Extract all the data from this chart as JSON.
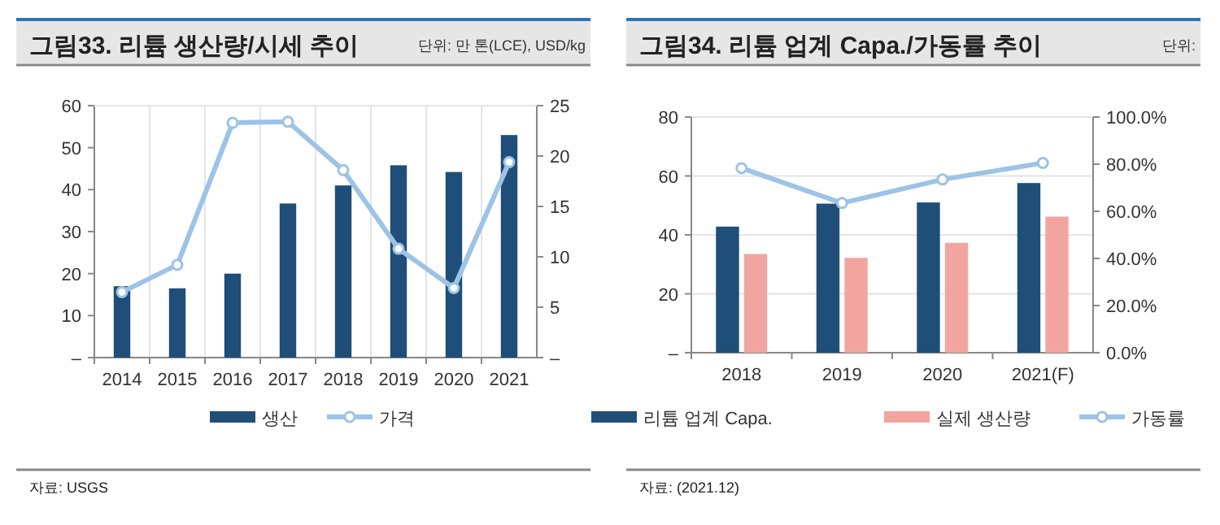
{
  "chart_data": [
    {
      "type": "bar",
      "title": "그림33. 리튬 생산량/시세 추이",
      "subtitle": "단위: 만 톤(LCE), USD/kg",
      "categories": [
        "2014",
        "2015",
        "2016",
        "2017",
        "2018",
        "2019",
        "2020",
        "2021"
      ],
      "series": [
        {
          "name": "생산",
          "color": "#1f4e79",
          "values": [
            17,
            16.5,
            20,
            36.7,
            41,
            45.8,
            44.2,
            53
          ]
        },
        {
          "name": "가격",
          "type": "line",
          "axis": "y2",
          "color": "#9dc3e6",
          "marker": "circle",
          "values": [
            6.5,
            9.2,
            23.3,
            23.4,
            18.6,
            10.8,
            6.9,
            19.4
          ]
        }
      ],
      "ylim": [
        0,
        60
      ],
      "yticks": [
        {
          "value": 0,
          "label": "–"
        },
        10,
        20,
        30,
        40,
        50,
        60
      ],
      "y2lim": [
        0,
        25
      ],
      "y2ticks": [
        {
          "value": 0,
          "label": "–"
        },
        5,
        10,
        15,
        20,
        25
      ],
      "grid": "x",
      "legend": "bottom",
      "annotations": [
        "자료: USGS"
      ]
    },
    {
      "type": "bar",
      "title": "그림34. 리튬 업계 Capa./가동률 추이",
      "subtitle": "단위:",
      "categories": [
        "2018",
        "2019",
        "2020",
        "2021(F)"
      ],
      "series": [
        {
          "name": "리튬 업계 Capa.",
          "color": "#1f4e79",
          "values": [
            42.8,
            50.6,
            51,
            57.6
          ]
        },
        {
          "name": "실제 생산량",
          "color": "#f2a59e",
          "values": [
            33.5,
            32.2,
            37.3,
            46.2
          ]
        },
        {
          "name": "가동률",
          "type": "line",
          "axis": "y2",
          "color": "#9dc3e6",
          "marker": "circle",
          "values": [
            78.3,
            63.5,
            73.5,
            80.5
          ]
        }
      ],
      "ylim": [
        0,
        80
      ],
      "yticks": [
        {
          "value": 0,
          "label": "–"
        },
        20,
        40,
        60,
        80
      ],
      "y2lim": [
        0,
        100
      ],
      "y2ticks": [
        {
          "value": 0,
          "label": "0.0%"
        },
        {
          "value": 20,
          "label": "20.0%"
        },
        {
          "value": 40,
          "label": "40.0%"
        },
        {
          "value": 60,
          "label": "60.0%"
        },
        {
          "value": 80,
          "label": "80.0%"
        },
        {
          "value": 100,
          "label": "100.0%"
        }
      ],
      "grid": "y",
      "legend": "bottom",
      "annotations": [
        "자료: (2021.12)"
      ]
    }
  ]
}
